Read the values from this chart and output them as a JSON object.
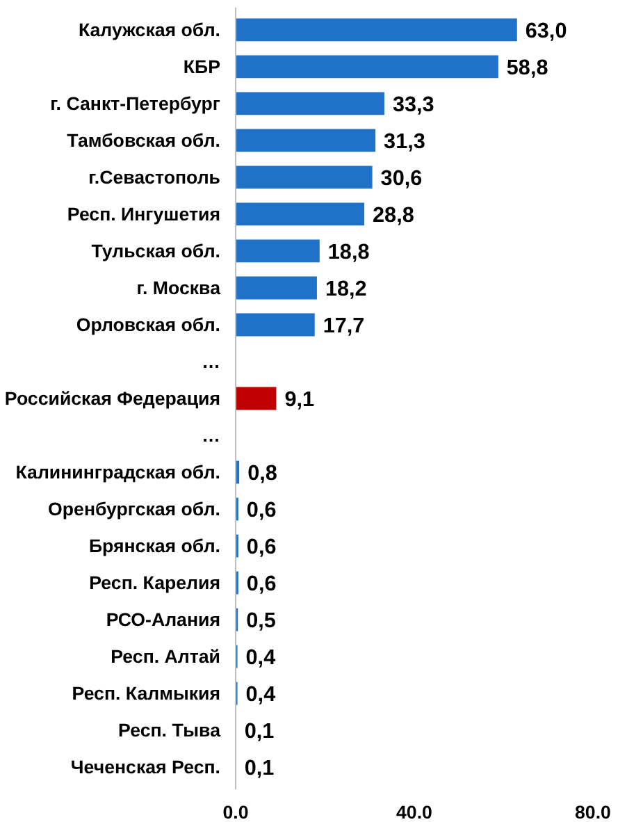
{
  "chart_data": {
    "type": "bar",
    "orientation": "horizontal",
    "categories": [
      "Калужская обл.",
      "КБР",
      "г. Санкт-Петербург",
      "Тамбовская обл.",
      "г.Севастополь",
      "Респ. Ингушетия",
      "Тульская обл.",
      "г. Москва",
      "Орловская обл.",
      "…",
      "Российская Федерация",
      "…",
      "Калининградская обл.",
      "Оренбургская обл.",
      "Брянская обл.",
      "Респ. Карелия",
      "РСО-Алания",
      "Респ. Алтай",
      "Респ. Калмыкия",
      "Респ. Тыва",
      "Чеченская Респ."
    ],
    "values": [
      63.0,
      58.8,
      33.3,
      31.3,
      30.6,
      28.8,
      18.8,
      18.2,
      17.7,
      null,
      9.1,
      null,
      0.8,
      0.6,
      0.6,
      0.6,
      0.5,
      0.4,
      0.4,
      0.1,
      0.1
    ],
    "value_labels": [
      "63,0",
      "58,8",
      "33,3",
      "31,3",
      "30,6",
      "28,8",
      "18,8",
      "18,2",
      "17,7",
      null,
      "9,1",
      null,
      "0,8",
      "0,6",
      "0,6",
      "0,6",
      "0,5",
      "0,4",
      "0,4",
      "0,1",
      "0,1"
    ],
    "colors": [
      "#1f72c8",
      "#1f72c8",
      "#1f72c8",
      "#1f72c8",
      "#1f72c8",
      "#1f72c8",
      "#1f72c8",
      "#1f72c8",
      "#1f72c8",
      null,
      "#c00000",
      null,
      "#1f72c8",
      "#1f72c8",
      "#1f72c8",
      "#1f72c8",
      "#1f72c8",
      "#1f72c8",
      "#1f72c8",
      "#1f72c8",
      "#1f72c8"
    ],
    "xlim": [
      0,
      80
    ],
    "xticks": [
      {
        "value": 0,
        "label": "0.0"
      },
      {
        "value": 40,
        "label": "40.0"
      },
      {
        "value": 80,
        "label": "80.0"
      }
    ],
    "grid": false
  }
}
